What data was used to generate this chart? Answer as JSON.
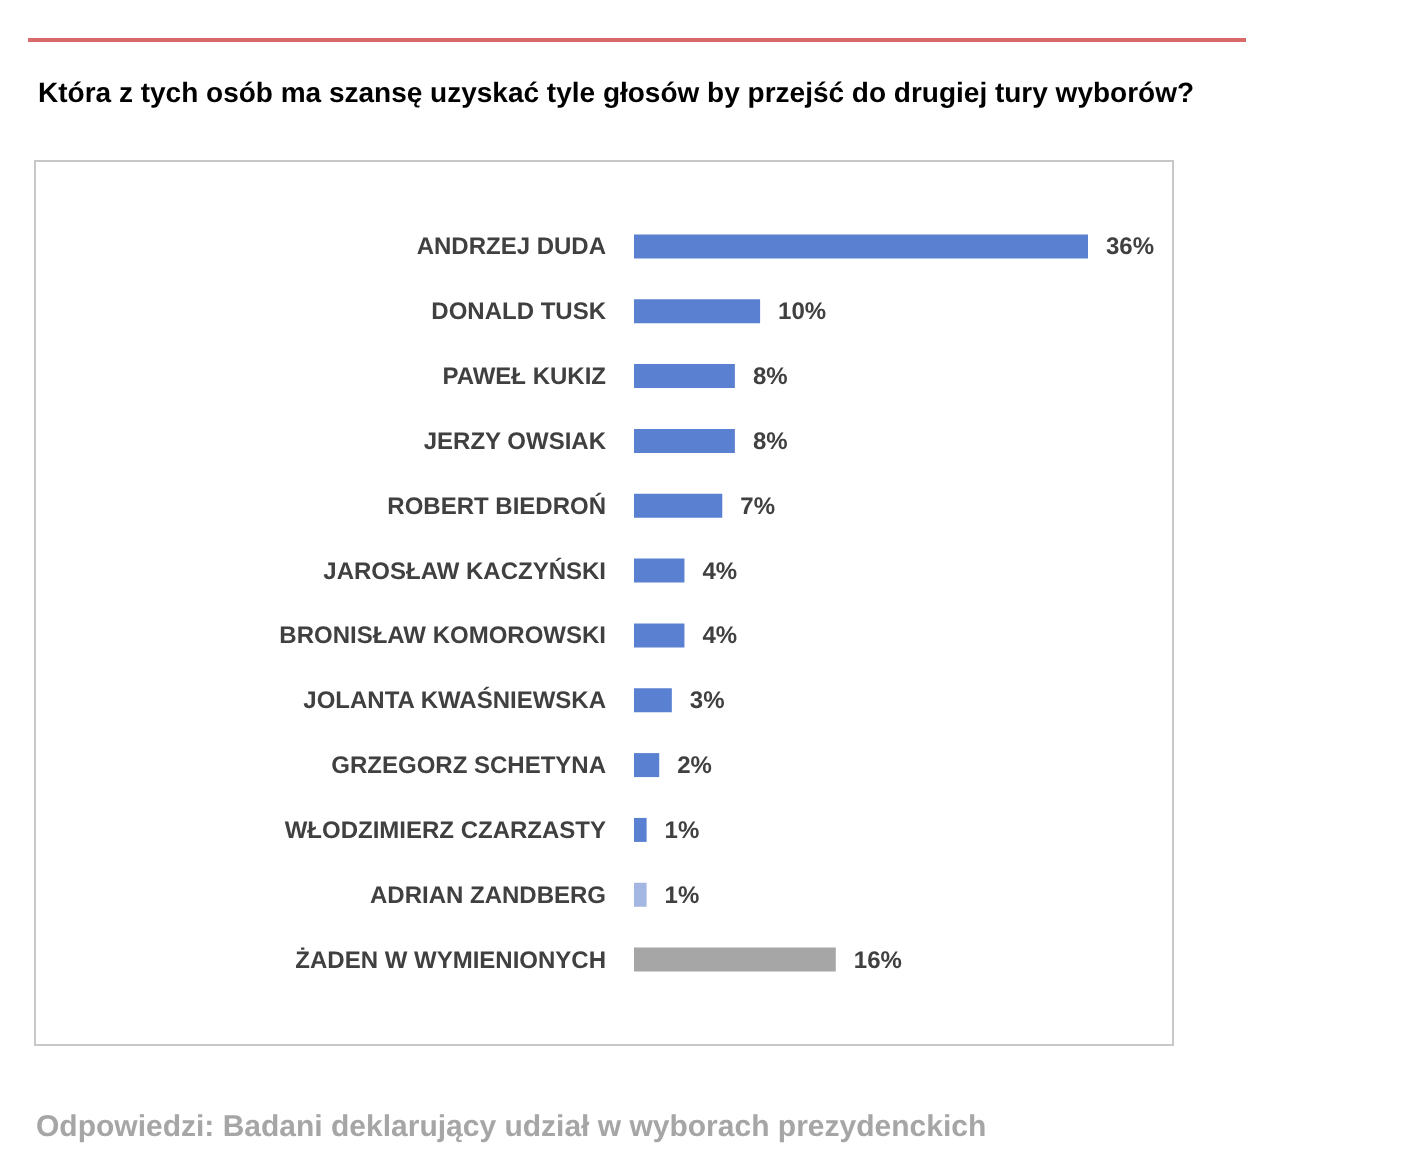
{
  "chart_data": {
    "type": "bar",
    "orientation": "horizontal",
    "title": "Która z tych osób ma szansę uzyskać tyle głosów by przejść do drugiej tury wyborów?",
    "categories": [
      "ANDRZEJ DUDA",
      "DONALD TUSK",
      "PAWEŁ KUKIZ",
      "JERZY OWSIAK",
      "ROBERT BIEDROŃ",
      "JAROSŁAW KACZYŃSKI",
      "BRONISŁAW KOMOROWSKI",
      "JOLANTA KWAŚNIEWSKA",
      "GRZEGORZ SCHETYNA",
      "WŁODZIMIERZ CZARZASTY",
      "ADRIAN ZANDBERG",
      "ŻADEN W WYMIENIONYCH"
    ],
    "values": [
      36,
      10,
      8,
      8,
      7,
      4,
      4,
      3,
      2,
      1,
      1,
      16
    ],
    "colors": [
      "#5a80d2",
      "#5a80d2",
      "#5a80d2",
      "#5a80d2",
      "#5a80d2",
      "#5a80d2",
      "#5a80d2",
      "#5a80d2",
      "#5a80d2",
      "#5a80d2",
      "#a3b7e2",
      "#a6a6a6"
    ],
    "value_labels": [
      "36%",
      "10%",
      "8%",
      "8%",
      "7%",
      "4%",
      "4%",
      "3%",
      "2%",
      "1%",
      "1%",
      "16%"
    ],
    "annotations": [
      "Odpowiedzi: Badani deklarujący udział w wyborach prezydenckich"
    ]
  }
}
